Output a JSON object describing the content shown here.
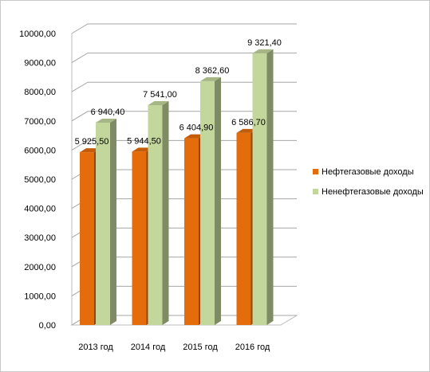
{
  "chart_data": {
    "type": "bar",
    "categories": [
      "2013 год",
      "2014 год",
      "2015 год",
      "2016 год"
    ],
    "series": [
      {
        "name": "Нефтегазовые доходы",
        "values": [
          5925.5,
          5944.5,
          6404.9,
          6586.7
        ],
        "labels": [
          "5 925,50",
          "5 944,50",
          "6 404,90",
          "6 586,70"
        ],
        "color": "#E46C0A"
      },
      {
        "name": "Ненефтегазовые доходы",
        "values": [
          6940.4,
          7541.0,
          8362.6,
          9321.4
        ],
        "labels": [
          "6 940,40",
          "7 541,00",
          "8 362,60",
          "9 321,40"
        ],
        "color": "#C3D69B"
      }
    ],
    "yticks": [
      "0,00",
      "1000,00",
      "2000,00",
      "3000,00",
      "4000,00",
      "5000,00",
      "6000,00",
      "7000,00",
      "8000,00",
      "9000,00",
      "10000,00"
    ],
    "ylim": [
      0,
      10000
    ],
    "grid": true,
    "legend": "right",
    "three_d": true
  }
}
